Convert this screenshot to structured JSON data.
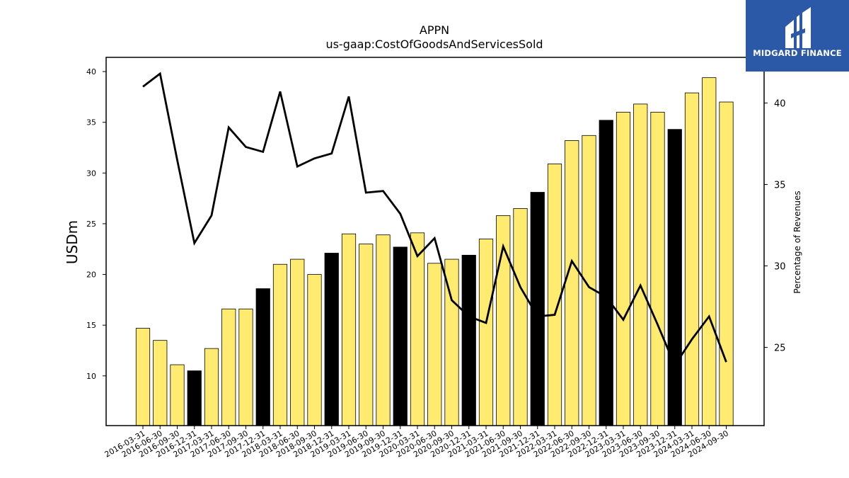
{
  "brand": {
    "name": "MIDGARD FINANCE",
    "logo_icon": "midgard-logo-icon",
    "color": "#2b59a8"
  },
  "chart_data": {
    "type": "bar",
    "title": "APPN",
    "subtitle": "us-gaap:CostOfGoodsAndServicesSold",
    "ylabel": "USDm",
    "y2label": "Percentage of Revenues",
    "ylim": [
      5.1,
      41.4
    ],
    "y2lim": [
      20.2,
      42.8
    ],
    "yticks": [
      10,
      15,
      20,
      25,
      30,
      35,
      40
    ],
    "y2ticks": [
      25,
      30,
      35,
      40
    ],
    "colors": {
      "bar": "#ffeb70",
      "bar_q4": "#000000",
      "line": "#000000"
    },
    "categories": [
      "2016-03-31",
      "2016-06-30",
      "2016-09-30",
      "2016-12-31",
      "2017-03-31",
      "2017-06-30",
      "2017-09-30",
      "2017-12-31",
      "2018-03-31",
      "2018-06-30",
      "2018-09-30",
      "2018-12-31",
      "2019-03-31",
      "2019-06-30",
      "2019-09-30",
      "2019-12-31",
      "2020-03-31",
      "2020-06-30",
      "2020-09-30",
      "2020-12-31",
      "2021-03-31",
      "2021-06-30",
      "2021-09-30",
      "2021-12-31",
      "2022-03-31",
      "2022-06-30",
      "2022-09-30",
      "2022-12-31",
      "2023-03-31",
      "2023-06-30",
      "2023-09-30",
      "2023-12-31",
      "2024-03-31",
      "2024-06-30",
      "2024-09-30"
    ],
    "series": [
      {
        "type": "bar",
        "values": [
          14.7,
          13.5,
          11.1,
          10.5,
          12.7,
          16.6,
          16.6,
          18.6,
          21.0,
          21.5,
          20.0,
          22.1,
          24.0,
          23.0,
          23.9,
          22.7,
          24.1,
          21.1,
          21.5,
          21.9,
          23.5,
          25.8,
          26.5,
          28.1,
          30.9,
          33.2,
          33.7,
          35.2,
          36.0,
          36.8,
          36.0,
          34.3,
          37.9,
          39.4,
          37.0
        ]
      },
      {
        "type": "line",
        "axis": "right",
        "values": [
          41.0,
          41.8,
          36.5,
          31.4,
          33.1,
          38.5,
          37.3,
          37.0,
          40.7,
          36.1,
          36.6,
          36.9,
          40.4,
          34.5,
          34.6,
          33.2,
          30.6,
          31.7,
          27.9,
          26.9,
          26.5,
          31.2,
          28.7,
          26.9,
          27.0,
          30.3,
          28.7,
          28.1,
          26.7,
          28.8,
          26.4,
          23.9,
          25.5,
          26.9,
          24.1
        ]
      }
    ],
    "grid": false,
    "legend": "none"
  }
}
